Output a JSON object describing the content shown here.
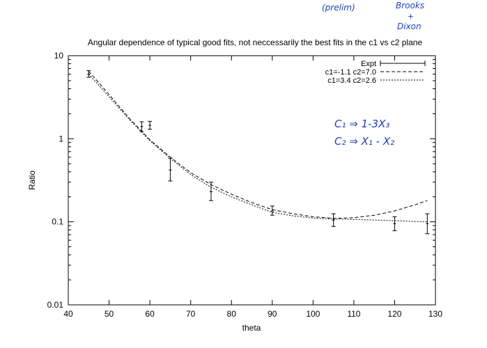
{
  "handwriting": {
    "prelim": "(prelim)",
    "authors_line1": "Brooks",
    "authors_plus": "+",
    "authors_line2": "Dixon",
    "note_c1": "C₁ ⇒ 1-3X₃",
    "note_c2": "C₂ ⇒ X₁ - X₂"
  },
  "chart_data": {
    "type": "line",
    "title": "Angular dependence of typical good fits, not neccessarily the best fits in the c1 vs c2 plane",
    "xlabel": "theta",
    "ylabel": "Ratio",
    "xlim": [
      40,
      130
    ],
    "ylim": [
      0.01,
      10
    ],
    "yscale": "log",
    "x_ticks": [
      "40",
      "50",
      "60",
      "70",
      "80",
      "90",
      "100",
      "110",
      "120",
      "130"
    ],
    "y_ticks": [
      "0.01",
      "0.1",
      "1",
      "10"
    ],
    "legend_position": "top-right",
    "grid": false,
    "series": [
      {
        "name": "Expt",
        "style": "errorbar",
        "color": "#000000",
        "x": [
          45,
          58,
          60,
          65,
          75,
          90,
          105,
          120,
          128
        ],
        "y": [
          6.0,
          1.4,
          1.45,
          0.42,
          0.23,
          0.135,
          0.105,
          0.095,
          0.095
        ],
        "err_low": [
          5.5,
          1.22,
          1.3,
          0.31,
          0.18,
          0.12,
          0.088,
          0.078,
          0.072
        ],
        "err_high": [
          6.6,
          1.6,
          1.62,
          0.58,
          0.3,
          0.155,
          0.125,
          0.115,
          0.125
        ]
      },
      {
        "name": "c1=-1.1 c2=7.0",
        "style": "dashed",
        "color": "#000000",
        "x": [
          45,
          50,
          55,
          60,
          65,
          70,
          75,
          80,
          85,
          90,
          95,
          100,
          105,
          110,
          115,
          120,
          125,
          128
        ],
        "y": [
          6.5,
          3.4,
          1.75,
          0.97,
          0.6,
          0.39,
          0.28,
          0.215,
          0.17,
          0.14,
          0.125,
          0.115,
          0.11,
          0.112,
          0.12,
          0.135,
          0.16,
          0.18
        ]
      },
      {
        "name": "c1=3.4 c2=2.6",
        "style": "dotted",
        "color": "#000000",
        "x": [
          45,
          50,
          55,
          60,
          65,
          70,
          75,
          80,
          85,
          90,
          95,
          100,
          105,
          110,
          115,
          120,
          125,
          128
        ],
        "y": [
          6.0,
          3.2,
          1.7,
          0.95,
          0.58,
          0.37,
          0.26,
          0.2,
          0.16,
          0.13,
          0.118,
          0.111,
          0.108,
          0.107,
          0.105,
          0.103,
          0.101,
          0.1
        ]
      }
    ]
  }
}
